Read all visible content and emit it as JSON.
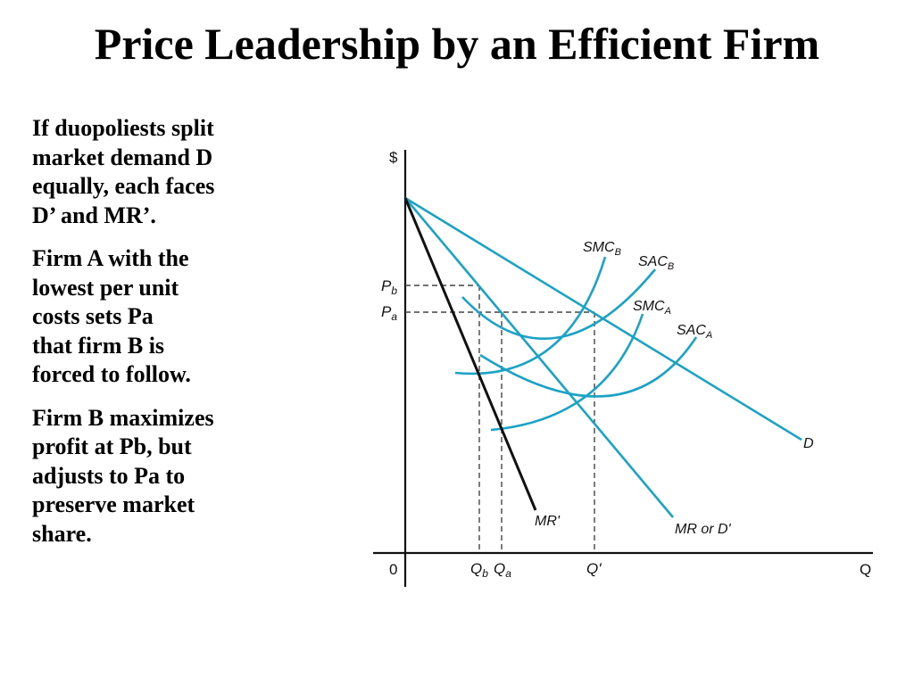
{
  "title": "Price Leadership by an Efficient Firm",
  "paragraphs": [
    "If duopoliests split\nmarket demand D\nequally, each faces\nD’ and MR’.",
    "Firm A with the\nlowest per unit\ncosts sets Pa\nthat firm B is\nforced to follow.",
    "Firm B maximizes\nprofit at Pb, but\nadjusts to Pa to\npreserve market\nshare."
  ],
  "diagram": {
    "y_axis_label": "$",
    "x_axis_label": "Q",
    "origin_label": "0",
    "price_labels": {
      "pb_main": "P",
      "pb_sub": "b",
      "pa_main": "P",
      "pa_sub": "a"
    },
    "quantity_labels": {
      "qb_main": "Q",
      "qb_sub": "b",
      "qa_main": "Q",
      "qa_sub": "a",
      "q_prime": "Q'"
    },
    "curve_labels": {
      "smc_b_main": "SMC",
      "smc_b_sub": "B",
      "sac_b_main": "SAC",
      "sac_b_sub": "B",
      "smc_a_main": "SMC",
      "smc_a_sub": "A",
      "sac_a_main": "SAC",
      "sac_a_sub": "A",
      "demand": "D",
      "mr_or_d_prime": "MR or D'",
      "mr_prime": "MR'"
    },
    "colors": {
      "curve": "#1ba3c6",
      "mr_prime": "#111111",
      "axis": "#111111",
      "dashed": "#444444"
    }
  }
}
